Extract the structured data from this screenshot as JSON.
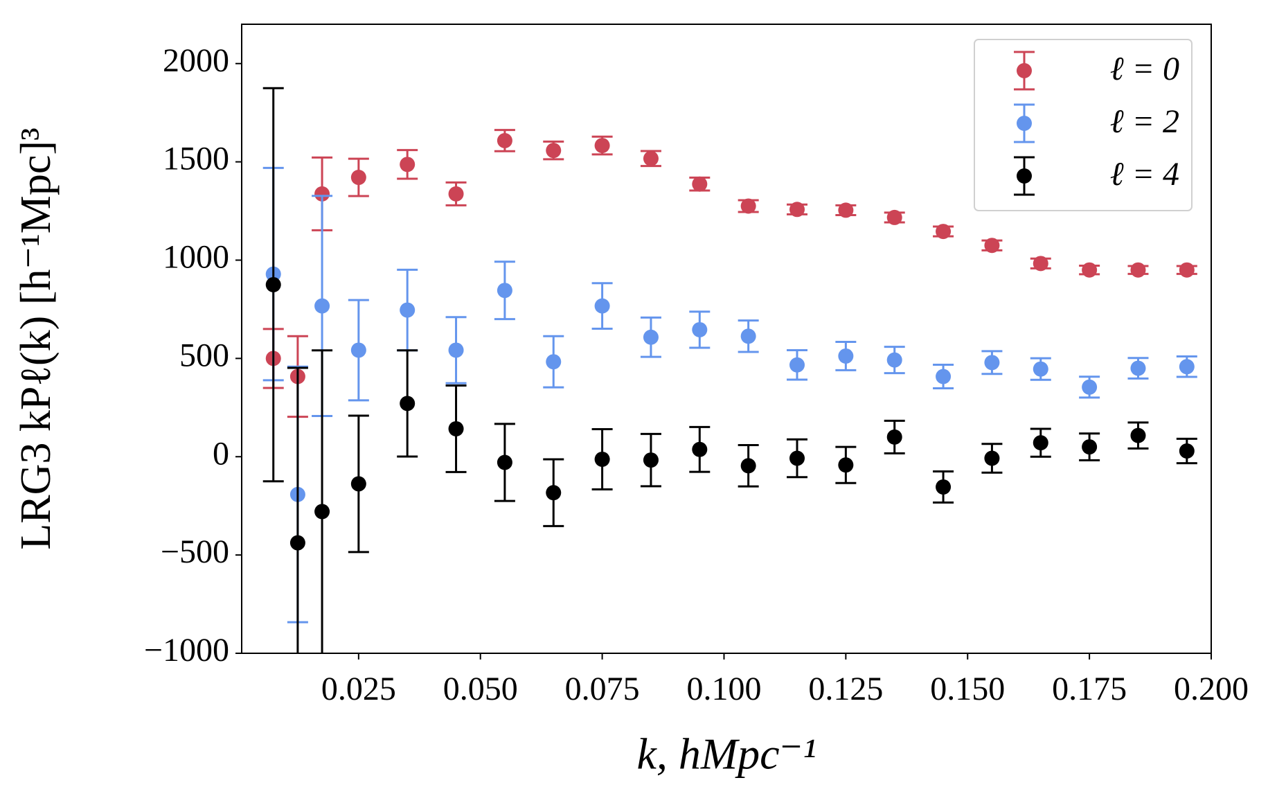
{
  "chart_data": {
    "type": "errorbar",
    "xlabel": "k, hMpc⁻¹",
    "ylabel": "LRG3 kPℓ(k) [h⁻¹Mpc]³",
    "x": [
      0.0075,
      0.0125,
      0.0175,
      0.025,
      0.035,
      0.045,
      0.055,
      0.065,
      0.075,
      0.085,
      0.095,
      0.105,
      0.115,
      0.125,
      0.135,
      0.145,
      0.155,
      0.165,
      0.175,
      0.185,
      0.195
    ],
    "series": [
      {
        "name": "ℓ = 0",
        "color": "#cc4455",
        "values": [
          500,
          408,
          1337,
          1421,
          1487,
          1337,
          1608,
          1558,
          1583,
          1517,
          1387,
          1275,
          1258,
          1254,
          1217,
          1146,
          1075,
          983,
          950,
          950,
          950
        ],
        "errors": [
          150,
          205,
          185,
          95,
          73,
          58,
          54,
          45,
          45,
          38,
          33,
          30,
          25,
          25,
          25,
          25,
          25,
          25,
          22,
          20,
          20
        ]
      },
      {
        "name": "ℓ = 2",
        "color": "#6495ed",
        "values": [
          929,
          -192,
          767,
          542,
          746,
          542,
          846,
          483,
          767,
          608,
          646,
          613,
          467,
          512,
          492,
          408,
          479,
          446,
          354,
          450,
          458
        ],
        "errors": [
          540,
          650,
          560,
          255,
          205,
          168,
          146,
          130,
          116,
          100,
          92,
          80,
          75,
          72,
          67,
          60,
          58,
          55,
          53,
          52,
          52
        ]
      },
      {
        "name": "ℓ = 4",
        "color": "#000000",
        "values": [
          875,
          -438,
          -279,
          -138,
          271,
          142,
          -29,
          -183,
          -13,
          -17,
          37,
          -46,
          -8,
          -42,
          100,
          -154,
          -8,
          71,
          50,
          108,
          29
        ],
        "errors": [
          1000,
          890,
          820,
          347,
          270,
          220,
          196,
          170,
          153,
          133,
          114,
          105,
          96,
          92,
          83,
          79,
          73,
          71,
          68,
          66,
          62
        ]
      }
    ],
    "xlim": [
      0.001,
      0.2
    ],
    "ylim": [
      -1000,
      2200
    ],
    "xticks": [
      {
        "value": 0.025,
        "label": "0.025"
      },
      {
        "value": 0.05,
        "label": "0.050"
      },
      {
        "value": 0.075,
        "label": "0.075"
      },
      {
        "value": 0.1,
        "label": "0.100"
      },
      {
        "value": 0.125,
        "label": "0.125"
      },
      {
        "value": 0.15,
        "label": "0.150"
      },
      {
        "value": 0.175,
        "label": "0.175"
      },
      {
        "value": 0.2,
        "label": "0.200"
      }
    ],
    "yticks": [
      {
        "value": -1000,
        "label": "−1000"
      },
      {
        "value": -500,
        "label": "−500"
      },
      0,
      500,
      1000,
      1500,
      2000
    ],
    "legend": "upper right"
  }
}
